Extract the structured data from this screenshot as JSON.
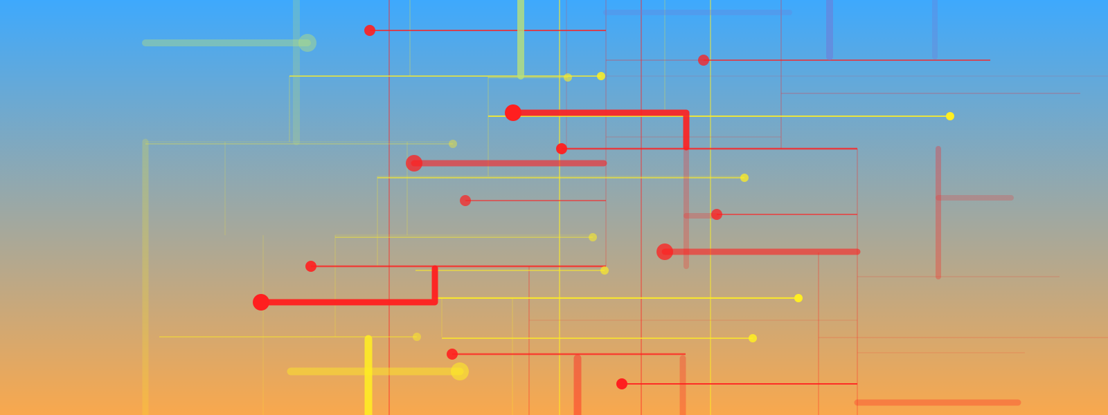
{
  "background": {
    "top_color": "#3ea9fd",
    "bottom_color": "#f9a84d"
  },
  "colors": {
    "red": "#ff1f1f",
    "yellow": "#ffee22",
    "green": "#b8e07a",
    "blue": "#6c7fd8"
  }
}
